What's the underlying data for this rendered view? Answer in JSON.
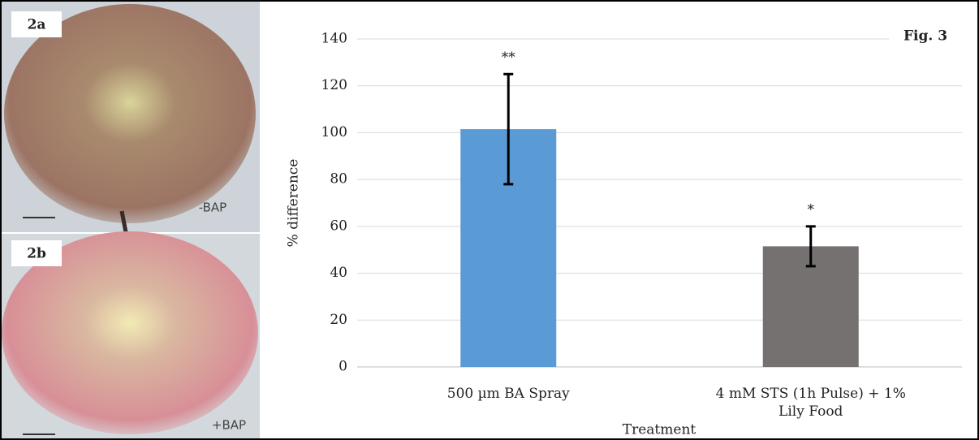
{
  "panels": {
    "top": {
      "label": "2a",
      "tag": "-BAP"
    },
    "bottom": {
      "label": "2b",
      "tag": "+BAP"
    }
  },
  "chart_data": {
    "type": "bar",
    "figure_label": "Fig. 3",
    "categories": [
      "500 µm BA Spray",
      "4 mM STS (1h Pulse) + 1% Lily Food"
    ],
    "values": [
      101.5,
      51.5
    ],
    "errors": [
      23.5,
      8.5
    ],
    "annotations": [
      "**",
      "*"
    ],
    "colors": [
      "#5b9bd5",
      "#767171"
    ],
    "ylabel": "% difference",
    "xlabel": "Treatment",
    "ylim": [
      0,
      140
    ],
    "yticks": [
      0,
      20,
      40,
      60,
      80,
      100,
      120,
      140
    ],
    "grid": true
  }
}
